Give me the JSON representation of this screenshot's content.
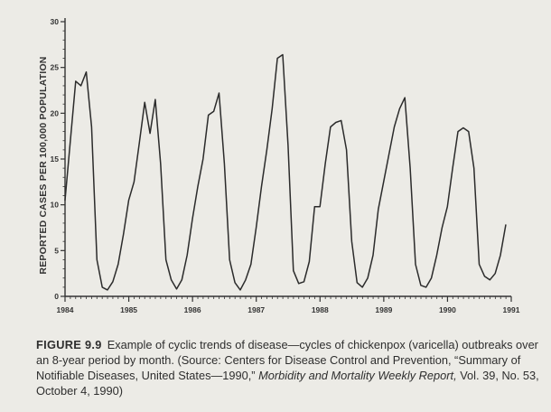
{
  "chart_data": {
    "type": "line",
    "ylabel": "REPORTED CASES PER 100,000 POPULATION",
    "xlabel": "",
    "ylim": [
      0,
      30
    ],
    "yticks": [
      0,
      5,
      10,
      15,
      20,
      25,
      30
    ],
    "xlim": [
      1984,
      1991
    ],
    "xticks": [
      "1984",
      "1985",
      "1986",
      "1987",
      "1988",
      "1989",
      "1990",
      "1991"
    ],
    "grid": false,
    "series": [
      {
        "x_start": 1984.0,
        "x_step_years": 0.0833,
        "values": [
          10.5,
          17.0,
          23.5,
          23.0,
          24.5,
          18.5,
          4.0,
          1.0,
          0.7,
          1.6,
          3.5,
          6.8,
          10.5,
          12.5,
          16.8,
          21.2,
          17.8,
          21.5,
          14.5,
          4.0,
          1.8,
          0.8,
          1.8,
          4.5,
          8.5,
          12.0,
          15.0,
          19.8,
          20.2,
          22.2,
          14.5,
          4.0,
          1.5,
          0.7,
          1.8,
          3.5,
          7.5,
          12.0,
          16.0,
          20.5,
          26.0,
          26.4,
          16.5,
          2.8,
          1.4,
          1.6,
          3.8,
          9.8,
          9.8,
          14.5,
          18.5,
          19.0,
          19.2,
          16.0,
          6.0,
          1.5,
          1.0,
          2.0,
          4.5,
          9.5,
          12.5,
          15.5,
          18.5,
          20.5,
          21.7,
          14.0,
          3.5,
          1.2,
          1.0,
          2.0,
          4.5,
          7.5,
          9.8,
          14.0,
          18.0,
          18.4,
          18.0,
          14.0,
          3.5,
          2.2,
          1.8,
          2.5,
          4.5,
          7.8
        ]
      }
    ]
  },
  "caption": {
    "figure_label": "FIGURE 9.9",
    "text_before_italic": "Example of cyclic trends of disease—cycles of chickenpox (varicella) outbreaks over an 8-year period by month. (Source: Centers for Disease Control and Prevention, “Summary of Notifiable Diseases, United States—1990,” ",
    "italic_text": "Morbidity and Mortality Weekly Report,",
    "text_after_italic": " Vol. 39, No. 53, October 4, 1990)"
  },
  "colors": {
    "line": "#2b2b2b",
    "axis": "#333333",
    "background": "#ecebe6"
  }
}
